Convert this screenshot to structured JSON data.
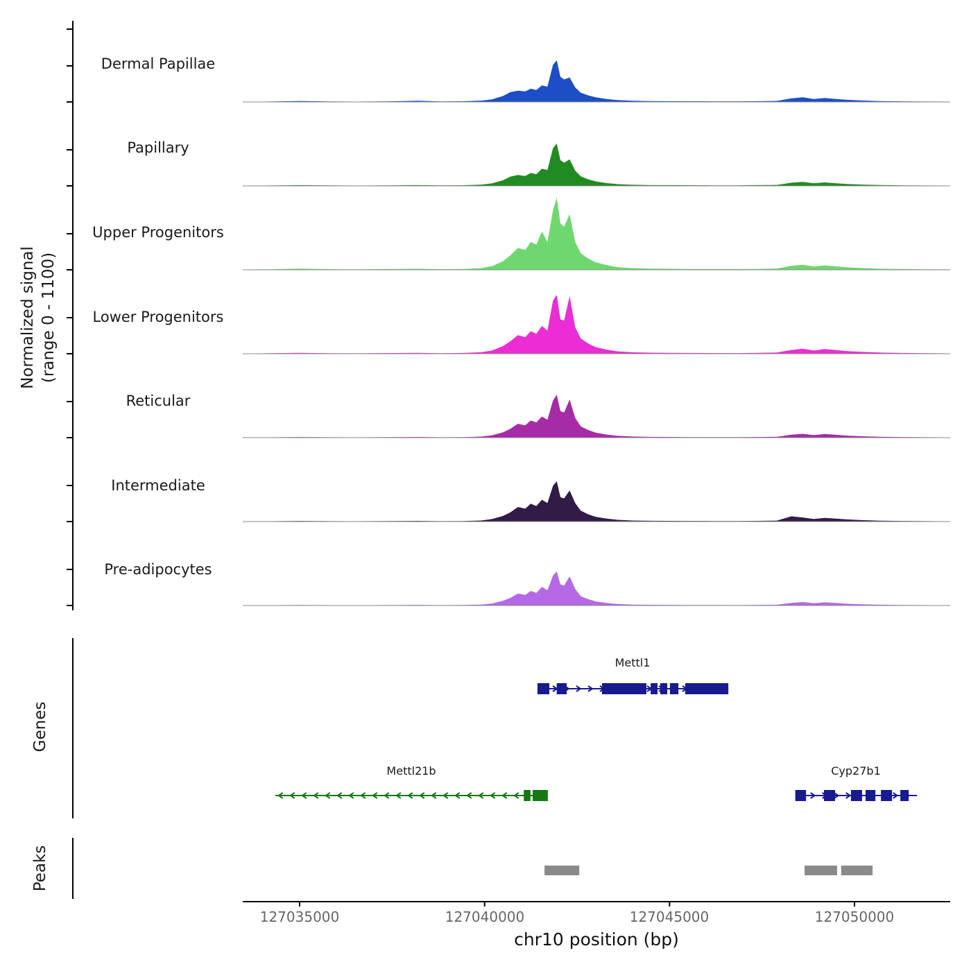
{
  "figure": {
    "y_axis_label_line1": "Normalized signal",
    "y_axis_label_line2": "(range 0 - 1100)",
    "x_axis_title": "chr10 position (bp)",
    "genes_section_label": "Genes",
    "peaks_section_label": "Peaks"
  },
  "chart_data": {
    "type": "area",
    "title": "",
    "xlabel": "chr10 position (bp)",
    "ylabel": "Normalized signal (range 0 - 1100)",
    "xlim": [
      127033500,
      127052587
    ],
    "track_ylim": [
      0,
      1100
    ],
    "grid": false,
    "x_ticks": [
      {
        "value": 127035000,
        "label": "127035000"
      },
      {
        "value": 127040000,
        "label": "127040000"
      },
      {
        "value": 127045000,
        "label": "127045000"
      },
      {
        "value": 127050000,
        "label": "127050000"
      }
    ],
    "x_bp": [
      127033500,
      127034200,
      127035000,
      127035800,
      127036600,
      127037400,
      127038200,
      127038800,
      127039400,
      127039900,
      127040200,
      127040500,
      127040700,
      127040900,
      127041100,
      127041250,
      127041400,
      127041550,
      127041700,
      127041850,
      127041950,
      127042050,
      127042150,
      127042300,
      127042450,
      127042600,
      127042800,
      127043000,
      127043300,
      127043600,
      127044000,
      127044500,
      127045000,
      127045600,
      127046200,
      127046800,
      127047400,
      127047900,
      127048300,
      127048600,
      127048900,
      127049200,
      127049500,
      127049800,
      127050200,
      127050700,
      127051300,
      127052000,
      127052587
    ],
    "series": [
      {
        "name": "Dermal Papillae",
        "color": "#1d4ec8",
        "values": [
          4,
          6,
          15,
          7,
          5,
          9,
          18,
          7,
          10,
          20,
          40,
          90,
          150,
          170,
          160,
          200,
          180,
          250,
          230,
          560,
          630,
          380,
          340,
          370,
          220,
          140,
          100,
          70,
          45,
          28,
          18,
          13,
          12,
          10,
          9,
          9,
          12,
          16,
          55,
          70,
          45,
          60,
          45,
          32,
          22,
          14,
          9,
          6,
          5
        ]
      },
      {
        "name": "Papillary",
        "color": "#208b20",
        "values": [
          4,
          6,
          10,
          7,
          5,
          8,
          12,
          7,
          9,
          18,
          38,
          85,
          140,
          165,
          150,
          195,
          175,
          260,
          240,
          570,
          640,
          390,
          350,
          400,
          230,
          145,
          100,
          68,
          42,
          26,
          17,
          12,
          11,
          9,
          8,
          8,
          11,
          15,
          48,
          60,
          40,
          52,
          40,
          28,
          20,
          13,
          8,
          6,
          4
        ]
      },
      {
        "name": "Upper Progenitors",
        "color": "#6ed86e",
        "values": [
          5,
          8,
          18,
          9,
          7,
          11,
          16,
          9,
          12,
          25,
          55,
          130,
          220,
          330,
          300,
          420,
          380,
          580,
          420,
          900,
          1090,
          700,
          650,
          840,
          420,
          250,
          170,
          115,
          70,
          40,
          25,
          18,
          16,
          12,
          11,
          11,
          14,
          20,
          60,
          75,
          50,
          65,
          52,
          38,
          26,
          17,
          12,
          8,
          6
        ]
      },
      {
        "name": "Lower Progenitors",
        "color": "#ec2cd4",
        "values": [
          4,
          7,
          13,
          8,
          6,
          10,
          14,
          8,
          11,
          22,
          48,
          115,
          190,
          280,
          250,
          340,
          300,
          420,
          350,
          800,
          890,
          520,
          500,
          870,
          400,
          230,
          155,
          100,
          62,
          36,
          22,
          16,
          14,
          11,
          10,
          9,
          13,
          19,
          58,
          75,
          48,
          70,
          56,
          40,
          28,
          18,
          12,
          8,
          5
        ]
      },
      {
        "name": "Reticular",
        "color": "#a62ba6",
        "values": [
          3,
          5,
          9,
          6,
          5,
          7,
          11,
          6,
          8,
          16,
          36,
          80,
          135,
          210,
          185,
          260,
          230,
          320,
          270,
          560,
          650,
          400,
          380,
          575,
          300,
          170,
          115,
          75,
          46,
          27,
          17,
          12,
          11,
          8,
          8,
          7,
          10,
          14,
          45,
          58,
          38,
          54,
          43,
          30,
          21,
          13,
          9,
          6,
          4
        ]
      },
      {
        "name": "Intermediate",
        "color": "#321b46",
        "values": [
          3,
          5,
          9,
          6,
          5,
          7,
          11,
          6,
          8,
          16,
          38,
          85,
          140,
          220,
          195,
          270,
          235,
          330,
          280,
          540,
          610,
          370,
          350,
          470,
          280,
          165,
          110,
          72,
          44,
          26,
          16,
          12,
          11,
          9,
          8,
          7,
          10,
          15,
          80,
          62,
          40,
          56,
          45,
          32,
          22,
          14,
          9,
          6,
          4
        ]
      },
      {
        "name": "Pre-adipocytes",
        "color": "#b469e6",
        "values": [
          3,
          4,
          7,
          5,
          4,
          6,
          9,
          5,
          7,
          13,
          30,
          70,
          115,
          180,
          160,
          220,
          190,
          280,
          230,
          450,
          515,
          320,
          300,
          440,
          250,
          140,
          95,
          62,
          38,
          22,
          14,
          10,
          9,
          7,
          7,
          6,
          9,
          12,
          40,
          52,
          34,
          48,
          38,
          26,
          18,
          12,
          8,
          5,
          4
        ]
      }
    ],
    "genes": [
      {
        "name": "Mettl1",
        "color": "#181a8f",
        "strand": "+",
        "row": 0,
        "start": 127041430,
        "end": 127046590,
        "exons": [
          [
            127041430,
            127041750
          ],
          [
            127041950,
            127042220
          ],
          [
            127043175,
            127044375
          ],
          [
            127044490,
            127044675
          ],
          [
            127044750,
            127044940
          ],
          [
            127045010,
            127045240
          ],
          [
            127045425,
            127046590
          ]
        ]
      },
      {
        "name": "Mettl21b",
        "color": "#157815",
        "strand": "-",
        "row": 1,
        "start": 127034340,
        "end": 127041710,
        "exons": [
          [
            127041060,
            127041240
          ],
          [
            127041300,
            127041710
          ]
        ]
      },
      {
        "name": "Cyp27b1",
        "color": "#181a8f",
        "strand": "+",
        "row": 1,
        "start": 127048400,
        "end": 127051690,
        "exons": [
          [
            127048400,
            127048690
          ],
          [
            127049175,
            127049475
          ],
          [
            127049905,
            127050205
          ],
          [
            127050300,
            127050565
          ],
          [
            127050715,
            127051015
          ],
          [
            127051240,
            127051465
          ]
        ]
      }
    ],
    "peaks": {
      "color": "#8a8a8a",
      "regions": [
        [
          127041620,
          127042560
        ],
        [
          127048650,
          127049530
        ],
        [
          127049640,
          127050490
        ]
      ]
    }
  }
}
